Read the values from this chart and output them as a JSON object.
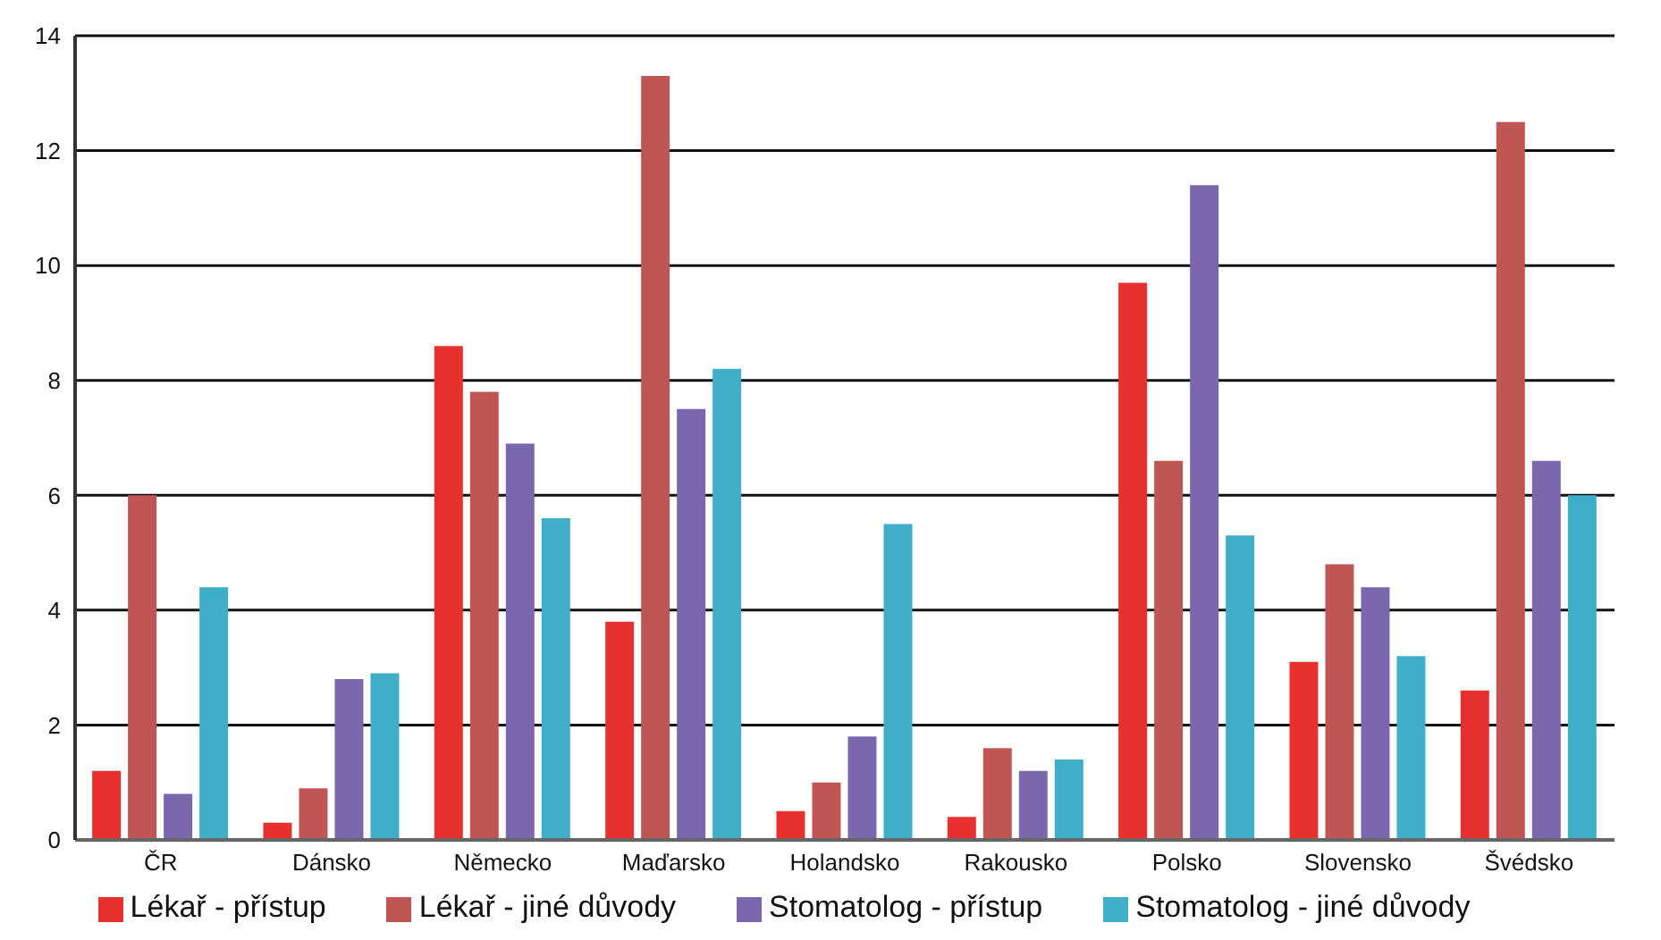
{
  "chart_data": {
    "type": "bar",
    "categories": [
      "ČR",
      "Dánsko",
      "Německo",
      "Maďarsko",
      "Holandsko",
      "Rakousko",
      "Polsko",
      "Slovensko",
      "Švédsko"
    ],
    "series": [
      {
        "name": "Lékař - přístup",
        "color": "#e8302e",
        "values": [
          1.2,
          0.3,
          8.6,
          3.8,
          0.5,
          0.4,
          9.7,
          3.1,
          2.6
        ]
      },
      {
        "name": "Lékař - jiné důvody",
        "color": "#bf5654",
        "values": [
          6.0,
          0.9,
          7.8,
          13.3,
          1.0,
          1.6,
          6.6,
          4.8,
          12.5
        ]
      },
      {
        "name": "Stomatolog - přístup",
        "color": "#7b67ad",
        "values": [
          0.8,
          2.8,
          6.9,
          7.5,
          1.8,
          1.2,
          11.4,
          4.4,
          6.6
        ]
      },
      {
        "name": "Stomatolog - jiné důvody",
        "color": "#3eaec9",
        "values": [
          4.4,
          2.9,
          5.6,
          8.2,
          5.5,
          1.4,
          5.3,
          3.2,
          6.0
        ]
      }
    ],
    "ylim": [
      0,
      14
    ],
    "yticks": [
      0,
      2,
      4,
      6,
      8,
      10,
      12,
      14
    ],
    "grid": "y",
    "legend": "bottom"
  }
}
